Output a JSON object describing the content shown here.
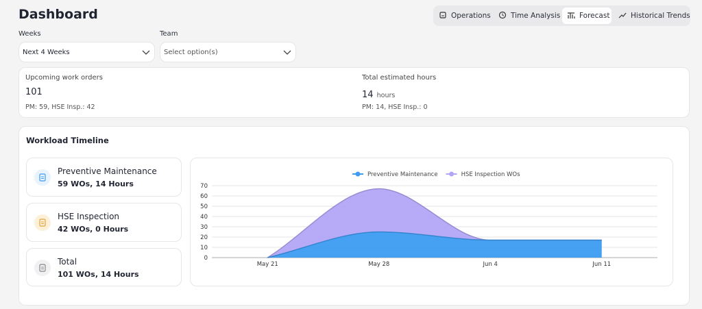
{
  "header": {
    "title": "Dashboard"
  },
  "tabs": [
    "Operations",
    "Time Analysis",
    "Forecast",
    "Historical Trends"
  ],
  "filters": [
    {
      "label": "Weeks",
      "value": "Next 4 Weeks"
    },
    {
      "label": "Team",
      "value": "Select option(s)"
    }
  ],
  "stats": [
    {
      "label": "Upcoming work orders",
      "value": 101,
      "detail": "PM: 59, HSE Insp.: 42"
    },
    {
      "label": "Total estimated hours",
      "value": 14,
      "unit": "hours",
      "detail": "PM: 14, HSE Insp.: 0"
    }
  ],
  "panel": {
    "title": "Workload Timeline",
    "cards": [
      {
        "name": "Preventive Maintenance",
        "detail": "59 WOs, 14 Hours"
      },
      {
        "name": "HSE Inspection",
        "detail": "42 WOs, 0 Hours"
      },
      {
        "name": "Total",
        "detail": "101 WOs, 14 Hours"
      }
    ]
  },
  "chart_data": {
    "type": "stacked-area",
    "categories": [
      "May 21",
      "May 28",
      "Jun 4",
      "Jun 11"
    ],
    "series": [
      {
        "name": "Preventive Maintenance",
        "color": "#3d9cf2",
        "values": [
          0,
          25,
          17,
          17
        ]
      },
      {
        "name": "HSE Inspection WOs",
        "color": "#b3a5f5",
        "values": [
          0,
          42,
          0,
          0
        ]
      }
    ],
    "ylim": [
      0,
      70
    ],
    "yticks": [
      0,
      10,
      20,
      30,
      40,
      50,
      60,
      70
    ],
    "grid": true,
    "legend": "top"
  }
}
